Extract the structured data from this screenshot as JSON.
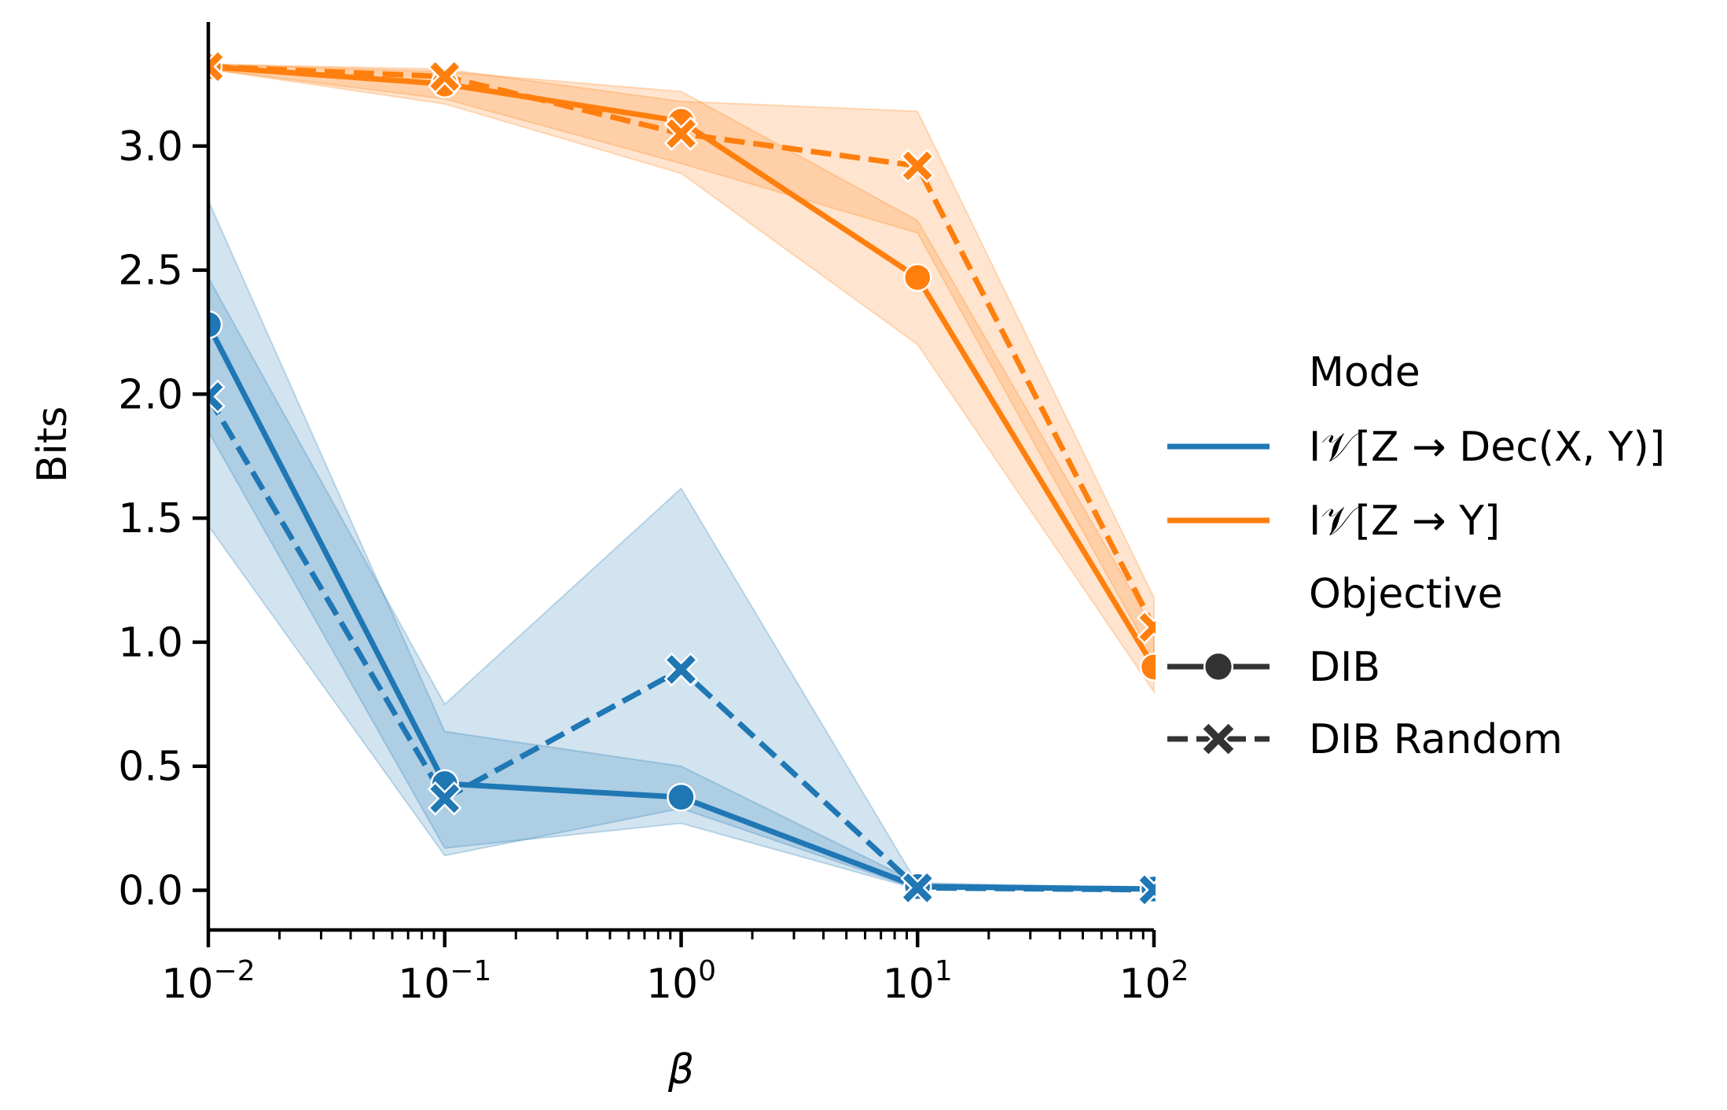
{
  "chart_data": {
    "type": "line",
    "xscale": "log",
    "x": [
      0.01,
      0.1,
      1,
      10,
      100
    ],
    "xlim": [
      0.01,
      100
    ],
    "ylim": [
      -0.16,
      3.5
    ],
    "xlabel": "β",
    "ylabel": "Bits",
    "xticks": [
      {
        "value": 0.01,
        "base": "10",
        "exp": "−2"
      },
      {
        "value": 0.1,
        "base": "10",
        "exp": "−1"
      },
      {
        "value": 1,
        "base": "10",
        "exp": "0"
      },
      {
        "value": 10,
        "base": "10",
        "exp": "1"
      },
      {
        "value": 100,
        "base": "10",
        "exp": "2"
      }
    ],
    "yticks": [
      {
        "value": 0.0,
        "label": "0.0"
      },
      {
        "value": 0.5,
        "label": "0.5"
      },
      {
        "value": 1.0,
        "label": "1.0"
      },
      {
        "value": 1.5,
        "label": "1.5"
      },
      {
        "value": 2.0,
        "label": "2.0"
      },
      {
        "value": 2.5,
        "label": "2.5"
      },
      {
        "value": 3.0,
        "label": "3.0"
      }
    ],
    "colors": {
      "blue": "#1f77b4",
      "orange": "#ff7f0e",
      "legend_dark": "#333333"
    },
    "series": [
      {
        "name": "Iv[Z→Dec(X,Y)] DIB",
        "mode": "blue",
        "objective": "DIB",
        "marker": "circle",
        "dash": false,
        "values": [
          2.28,
          0.43,
          0.375,
          0.015,
          0.005
        ],
        "lower": [
          1.85,
          0.17,
          0.27,
          0.005,
          0.0
        ],
        "upper": [
          2.78,
          0.64,
          0.5,
          0.03,
          0.01
        ]
      },
      {
        "name": "Iv[Z→Dec(X,Y)] DIB Random",
        "mode": "blue",
        "objective": "DIB Random",
        "marker": "x",
        "dash": true,
        "values": [
          1.99,
          0.37,
          0.89,
          0.01,
          0.002
        ],
        "lower": [
          1.47,
          0.14,
          0.33,
          0.005,
          0.0
        ],
        "upper": [
          2.47,
          0.75,
          1.62,
          0.025,
          0.006
        ]
      },
      {
        "name": "Iv[Z→Y] DIB",
        "mode": "orange",
        "objective": "DIB",
        "marker": "circle",
        "dash": false,
        "values": [
          3.32,
          3.25,
          3.1,
          2.47,
          0.9
        ],
        "lower": [
          3.31,
          3.17,
          2.89,
          2.2,
          0.8
        ],
        "upper": [
          3.33,
          3.3,
          3.22,
          2.7,
          1.05
        ]
      },
      {
        "name": "Iv[Z→Y] DIB Random",
        "mode": "orange",
        "objective": "DIB Random",
        "marker": "x",
        "dash": true,
        "values": [
          3.32,
          3.28,
          3.05,
          2.92,
          1.06
        ],
        "lower": [
          3.31,
          3.19,
          2.93,
          2.65,
          0.93
        ],
        "upper": [
          3.33,
          3.31,
          3.18,
          3.14,
          1.18
        ]
      }
    ],
    "legend": {
      "placement": "right",
      "mode_title": "Mode",
      "objective_title": "Objective",
      "entries": [
        {
          "kind": "mode",
          "color": "blue",
          "label": "I𝒱[Z → Dec(X, Y)]"
        },
        {
          "kind": "mode",
          "color": "orange",
          "label": "I𝒱[Z → Y]"
        },
        {
          "kind": "objective",
          "marker": "circle",
          "dash": false,
          "label": "DIB"
        },
        {
          "kind": "objective",
          "marker": "x",
          "dash": true,
          "label": "DIB Random"
        }
      ]
    }
  }
}
